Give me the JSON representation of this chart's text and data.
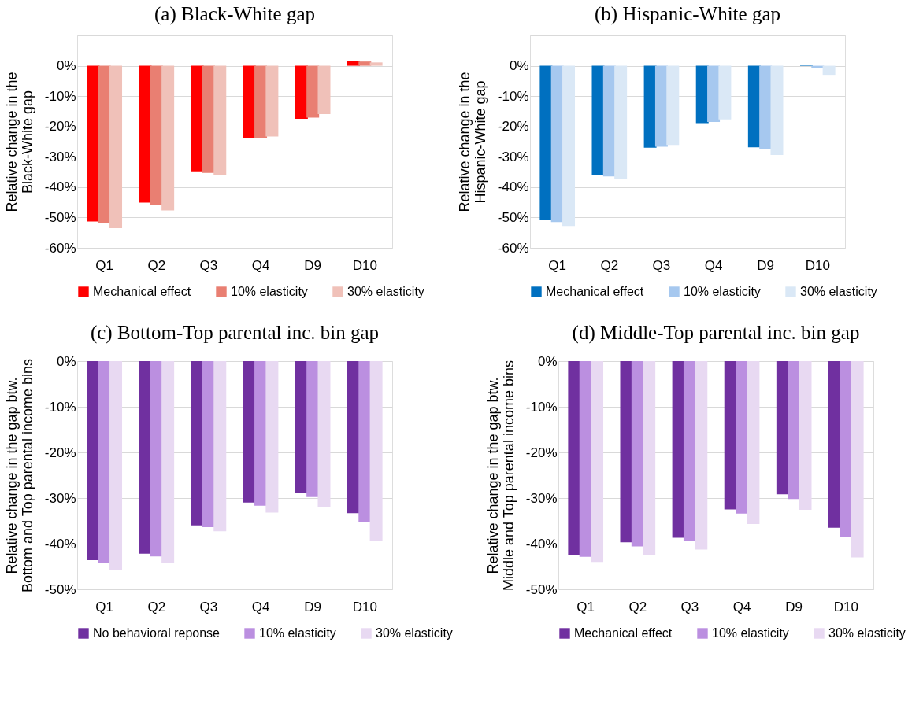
{
  "chart_data": [
    {
      "type": "bar",
      "title": "(a) Black-White gap",
      "ylabel": "Relative change in the\nBlack-White gap",
      "categories": [
        "Q1",
        "Q2",
        "Q3",
        "Q4",
        "D9",
        "D10"
      ],
      "grid": "y",
      "legend": "bottom",
      "ylim": [
        -60,
        10
      ],
      "yticks": [
        {
          "value": -60,
          "label": "-60%"
        },
        {
          "value": -50,
          "label": "-50%"
        },
        {
          "value": -40,
          "label": "-40%"
        },
        {
          "value": -30,
          "label": "-30%"
        },
        {
          "value": -20,
          "label": "-20%"
        },
        {
          "value": -10,
          "label": "-10%"
        },
        {
          "value": 0,
          "label": "0%"
        },
        {
          "value": 10,
          "label": null
        }
      ],
      "series": [
        {
          "name": "Mechanical effect",
          "color": "#ff0000",
          "values": [
            -51.3,
            -45.1,
            -34.8,
            -23.9,
            -17.5,
            1.6
          ]
        },
        {
          "name": "10% elasticity",
          "color": "#e97f72",
          "values": [
            -51.9,
            -46.0,
            -35.3,
            -23.8,
            -17.1,
            1.4
          ]
        },
        {
          "name": "30% elasticity",
          "color": "#f0c1b9",
          "values": [
            -53.5,
            -47.7,
            -36.1,
            -23.3,
            -15.9,
            1.1
          ]
        }
      ]
    },
    {
      "type": "bar",
      "title": "(b) Hispanic-White gap",
      "ylabel": "Relative change in the\nHispanic-White gap",
      "categories": [
        "Q1",
        "Q2",
        "Q3",
        "Q4",
        "D9",
        "D10"
      ],
      "grid": "y",
      "legend": "bottom",
      "ylim": [
        -60,
        10
      ],
      "yticks": [
        {
          "value": -60,
          "label": "-60%"
        },
        {
          "value": -50,
          "label": "-50%"
        },
        {
          "value": -40,
          "label": "-40%"
        },
        {
          "value": -30,
          "label": "-30%"
        },
        {
          "value": -20,
          "label": "-20%"
        },
        {
          "value": -10,
          "label": "-10%"
        },
        {
          "value": 0,
          "label": "0%"
        },
        {
          "value": 10,
          "label": null
        }
      ],
      "series": [
        {
          "name": "Mechanical effect",
          "color": "#0070c0",
          "values": [
            -50.9,
            -36.1,
            -27.0,
            -18.9,
            -26.9,
            0.2
          ]
        },
        {
          "name": "10% elasticity",
          "color": "#a6c8ef",
          "values": [
            -51.5,
            -36.5,
            -26.7,
            -18.5,
            -27.6,
            -0.7
          ]
        },
        {
          "name": "30% elasticity",
          "color": "#dae8f6",
          "values": [
            -52.8,
            -37.2,
            -26.1,
            -17.7,
            -29.4,
            -3.0
          ]
        }
      ]
    },
    {
      "type": "bar",
      "title": "(c) Bottom-Top parental inc. bin gap",
      "ylabel": "Relative change in the gap btw.\nBottom and Top parental income bins",
      "categories": [
        "Q1",
        "Q2",
        "Q3",
        "Q4",
        "D9",
        "D10"
      ],
      "grid": "y",
      "legend": "bottom",
      "ylim": [
        -50,
        0
      ],
      "yticks": [
        {
          "value": -50,
          "label": "-50%"
        },
        {
          "value": -40,
          "label": "-40%"
        },
        {
          "value": -30,
          "label": "-30%"
        },
        {
          "value": -20,
          "label": "-20%"
        },
        {
          "value": -10,
          "label": "-10%"
        },
        {
          "value": 0,
          "label": "0%"
        }
      ],
      "series": [
        {
          "name": "No behavioral reponse",
          "color": "#7030a0",
          "values": [
            -43.6,
            -42.2,
            -36.0,
            -31.0,
            -28.8,
            -33.3
          ]
        },
        {
          "name": "10% elasticity",
          "color": "#bb8fe0",
          "values": [
            -44.3,
            -42.8,
            -36.4,
            -31.7,
            -29.8,
            -35.2
          ]
        },
        {
          "name": "30% elasticity",
          "color": "#e8d9f2",
          "values": [
            -45.7,
            -44.3,
            -37.3,
            -33.2,
            -32.0,
            -39.3
          ]
        }
      ]
    },
    {
      "type": "bar",
      "title": "(d) Middle-Top parental inc. bin gap",
      "ylabel": "Relative change in the gap btw.\nMiddle and Top parental income bins",
      "categories": [
        "Q1",
        "Q2",
        "Q3",
        "Q4",
        "D9",
        "D10"
      ],
      "grid": "y",
      "legend": "bottom",
      "ylim": [
        -50,
        0
      ],
      "yticks": [
        {
          "value": -50,
          "label": "-50%"
        },
        {
          "value": -40,
          "label": "-40%"
        },
        {
          "value": -30,
          "label": "-30%"
        },
        {
          "value": -20,
          "label": "-20%"
        },
        {
          "value": -10,
          "label": "-10%"
        },
        {
          "value": 0,
          "label": "0%"
        }
      ],
      "series": [
        {
          "name": "Mechanical effect",
          "color": "#7030a0",
          "values": [
            -42.4,
            -39.7,
            -38.7,
            -32.5,
            -29.2,
            -36.5
          ]
        },
        {
          "name": "10% elasticity",
          "color": "#bb8fe0",
          "values": [
            -42.9,
            -40.6,
            -39.5,
            -33.4,
            -30.2,
            -38.5
          ]
        },
        {
          "name": "30% elasticity",
          "color": "#e8d9f2",
          "values": [
            -44.0,
            -42.5,
            -41.3,
            -35.7,
            -32.6,
            -43.0
          ]
        }
      ]
    }
  ]
}
